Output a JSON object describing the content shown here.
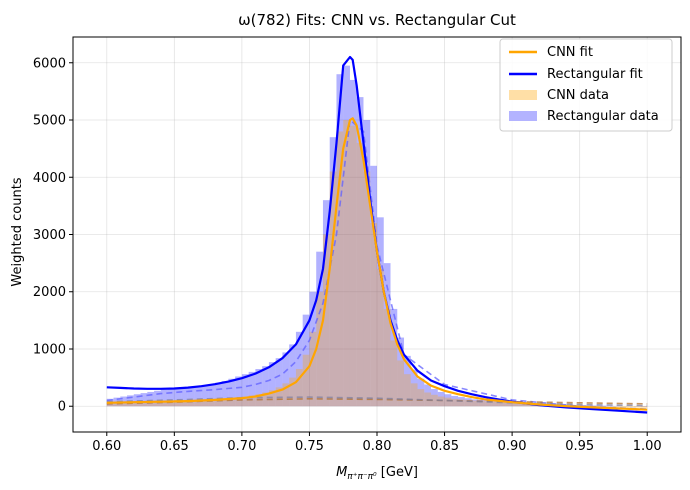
{
  "chart_data": {
    "type": "area",
    "title": "ω(782) Fits: CNN vs. Rectangular Cut",
    "xlabel_prefix": "M",
    "xlabel_sub": "π⁺π⁻π⁰",
    "xlabel_suffix": " [GeV]",
    "ylabel": "Weighted counts",
    "xlim": [
      0.575,
      1.025
    ],
    "ylim": [
      -450,
      6450
    ],
    "xticks": [
      0.6,
      0.65,
      0.7,
      0.75,
      0.8,
      0.85,
      0.9,
      0.95,
      1.0
    ],
    "xtick_labels": [
      "0.60",
      "0.65",
      "0.70",
      "0.75",
      "0.80",
      "0.85",
      "0.90",
      "0.95",
      "1.00"
    ],
    "yticks": [
      0,
      1000,
      2000,
      3000,
      4000,
      5000,
      6000
    ],
    "ytick_labels": [
      "0",
      "1000",
      "2000",
      "3000",
      "4000",
      "5000",
      "6000"
    ],
    "grid": true,
    "legend_position": "top-right",
    "legend": [
      {
        "label": "CNN fit",
        "kind": "line",
        "color": "#ffa500"
      },
      {
        "label": "Rectangular fit",
        "kind": "line",
        "color": "#0000ff"
      },
      {
        "label": "CNN data",
        "kind": "patch",
        "color": "#ffdfa6"
      },
      {
        "label": "Rectangular data",
        "kind": "patch",
        "color": "#b3b3ff"
      }
    ],
    "bin_width": 0.005,
    "series": [
      {
        "name": "Rectangular data",
        "kind": "hist",
        "color": "#0000ff",
        "opacity": 0.3,
        "x": [
          0.6025,
          0.6075,
          0.6125,
          0.6175,
          0.6225,
          0.6275,
          0.6325,
          0.6375,
          0.6425,
          0.6475,
          0.6525,
          0.6575,
          0.6625,
          0.6675,
          0.6725,
          0.6775,
          0.6825,
          0.6875,
          0.6925,
          0.6975,
          0.7025,
          0.7075,
          0.7125,
          0.7175,
          0.7225,
          0.7275,
          0.7325,
          0.7375,
          0.7425,
          0.7475,
          0.7525,
          0.7575,
          0.7625,
          0.7675,
          0.7725,
          0.7775,
          0.7825,
          0.7875,
          0.7925,
          0.7975,
          0.8025,
          0.8075,
          0.8125,
          0.8175,
          0.8225,
          0.8275,
          0.8325,
          0.8375,
          0.8425,
          0.8475,
          0.8525,
          0.8575,
          0.8625,
          0.8675,
          0.8725,
          0.8775,
          0.8825,
          0.8875,
          0.8925,
          0.8975,
          0.9025,
          0.9075,
          0.9125,
          0.9175,
          0.9225,
          0.9275,
          0.9325,
          0.9375,
          0.9425,
          0.9475,
          0.9525,
          0.9575,
          0.9625,
          0.9675,
          0.9725,
          0.9775,
          0.9825,
          0.9875,
          0.9925,
          0.9975
        ],
        "values": [
          130,
          150,
          170,
          190,
          210,
          230,
          250,
          270,
          290,
          300,
          310,
          320,
          330,
          340,
          360,
          380,
          410,
          440,
          480,
          520,
          560,
          600,
          650,
          700,
          770,
          840,
          940,
          1080,
          1300,
          1600,
          2000,
          2700,
          3600,
          4700,
          5800,
          5950,
          5700,
          5400,
          5000,
          4200,
          3300,
          2500,
          1700,
          1200,
          880,
          640,
          480,
          380,
          300,
          250,
          210,
          180,
          160,
          140,
          120,
          110,
          100,
          90,
          80,
          75,
          70,
          60,
          55,
          50,
          45,
          40,
          35,
          30,
          25,
          20,
          18,
          15,
          12,
          10,
          8,
          5,
          2,
          0,
          -5,
          -10
        ]
      },
      {
        "name": "CNN data",
        "kind": "hist",
        "color": "#ffa500",
        "opacity": 0.3,
        "x": [
          0.6025,
          0.6075,
          0.6125,
          0.6175,
          0.6225,
          0.6275,
          0.6325,
          0.6375,
          0.6425,
          0.6475,
          0.6525,
          0.6575,
          0.6625,
          0.6675,
          0.6725,
          0.6775,
          0.6825,
          0.6875,
          0.6925,
          0.6975,
          0.7025,
          0.7075,
          0.7125,
          0.7175,
          0.7225,
          0.7275,
          0.7325,
          0.7375,
          0.7425,
          0.7475,
          0.7525,
          0.7575,
          0.7625,
          0.7675,
          0.7725,
          0.7775,
          0.7825,
          0.7875,
          0.7925,
          0.7975,
          0.8025,
          0.8075,
          0.8125,
          0.8175,
          0.8225,
          0.8275,
          0.8325,
          0.8375,
          0.8425,
          0.8475,
          0.8525,
          0.8575,
          0.8625,
          0.8675,
          0.8725,
          0.8775,
          0.8825,
          0.8875,
          0.8925,
          0.8975,
          0.9025,
          0.9075,
          0.9125,
          0.9175,
          0.9225,
          0.9275,
          0.9325,
          0.9375,
          0.9425,
          0.9475,
          0.9525,
          0.9575,
          0.9625,
          0.9675,
          0.9725,
          0.9775,
          0.9825,
          0.9875,
          0.9925,
          0.9975
        ],
        "values": [
          60,
          70,
          80,
          80,
          90,
          90,
          100,
          100,
          100,
          100,
          110,
          110,
          110,
          110,
          120,
          120,
          130,
          140,
          150,
          160,
          170,
          190,
          210,
          240,
          280,
          330,
          400,
          500,
          650,
          900,
          1300,
          2000,
          3000,
          4100,
          4800,
          5000,
          4900,
          4600,
          4100,
          3200,
          2400,
          1700,
          1150,
          800,
          560,
          400,
          300,
          240,
          200,
          170,
          150,
          130,
          120,
          110,
          100,
          90,
          85,
          80,
          75,
          70,
          65,
          60,
          55,
          50,
          45,
          40,
          35,
          30,
          25,
          20,
          15,
          10,
          5,
          0,
          -5,
          -10,
          -15,
          -20,
          -25,
          -30
        ]
      },
      {
        "name": "Rectangular fit",
        "kind": "line",
        "color": "#0000ff",
        "x": [
          0.6,
          0.61,
          0.62,
          0.63,
          0.64,
          0.65,
          0.66,
          0.67,
          0.68,
          0.69,
          0.7,
          0.71,
          0.72,
          0.73,
          0.74,
          0.75,
          0.755,
          0.76,
          0.765,
          0.77,
          0.775,
          0.78,
          0.782,
          0.785,
          0.79,
          0.795,
          0.8,
          0.805,
          0.81,
          0.815,
          0.82,
          0.83,
          0.84,
          0.85,
          0.86,
          0.87,
          0.88,
          0.89,
          0.9,
          0.92,
          0.94,
          0.96,
          0.98,
          1.0
        ],
        "values": [
          330,
          320,
          310,
          305,
          305,
          310,
          325,
          350,
          385,
          430,
          490,
          570,
          680,
          840,
          1080,
          1500,
          1850,
          2400,
          3400,
          4600,
          5950,
          6100,
          6050,
          5600,
          4600,
          3600,
          2700,
          2000,
          1500,
          1150,
          900,
          620,
          450,
          350,
          270,
          210,
          160,
          120,
          80,
          20,
          -20,
          -50,
          -80,
          -110
        ]
      },
      {
        "name": "CNN fit",
        "kind": "line",
        "color": "#ffa500",
        "x": [
          0.6,
          0.62,
          0.64,
          0.66,
          0.68,
          0.7,
          0.71,
          0.72,
          0.73,
          0.74,
          0.75,
          0.755,
          0.76,
          0.765,
          0.77,
          0.775,
          0.78,
          0.782,
          0.785,
          0.79,
          0.795,
          0.8,
          0.805,
          0.81,
          0.815,
          0.82,
          0.83,
          0.84,
          0.85,
          0.86,
          0.87,
          0.88,
          0.9,
          0.92,
          0.94,
          0.96,
          0.98,
          1.0
        ],
        "values": [
          60,
          70,
          80,
          90,
          110,
          140,
          170,
          220,
          290,
          420,
          700,
          1000,
          1500,
          2400,
          3500,
          4500,
          5000,
          5030,
          4900,
          4300,
          3500,
          2700,
          2000,
          1450,
          1080,
          820,
          520,
          360,
          270,
          210,
          160,
          120,
          70,
          30,
          0,
          -20,
          -40,
          -60
        ]
      },
      {
        "name": "Rectangular background",
        "kind": "dashed",
        "color": "#6060ff",
        "x": [
          0.6,
          0.62,
          0.64,
          0.66,
          0.68,
          0.7,
          0.71,
          0.72,
          0.73,
          0.74,
          0.75,
          0.76,
          0.77,
          0.78,
          0.79,
          0.8,
          0.82,
          0.85,
          0.9,
          0.95,
          1.0
        ],
        "values": [
          100,
          160,
          220,
          260,
          290,
          330,
          380,
          450,
          560,
          780,
          1150,
          1800,
          3000,
          5000,
          4800,
          2800,
          900,
          380,
          110,
          0,
          -50
        ]
      },
      {
        "name": "CNN background",
        "kind": "dashed",
        "color": "#b07030",
        "x": [
          0.6,
          0.65,
          0.7,
          0.75,
          0.8,
          0.85,
          0.9,
          0.95,
          1.0
        ],
        "values": [
          40,
          70,
          110,
          130,
          120,
          100,
          80,
          60,
          40
        ]
      },
      {
        "name": "Rectangular polynomial",
        "kind": "dashed",
        "color": "#8080a0",
        "x": [
          0.6,
          0.65,
          0.7,
          0.75,
          0.8,
          0.85,
          0.9,
          0.95,
          1.0
        ],
        "values": [
          80,
          110,
          150,
          160,
          140,
          100,
          60,
          30,
          10
        ]
      }
    ]
  }
}
